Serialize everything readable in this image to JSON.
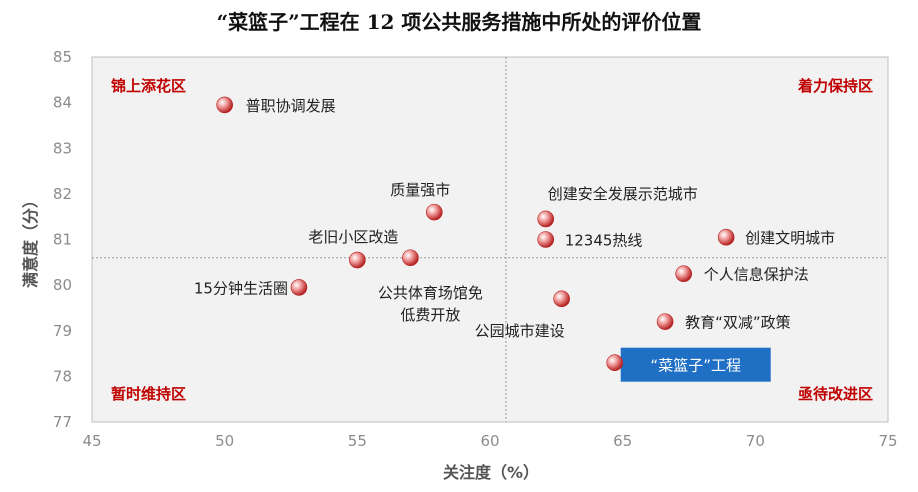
{
  "chart_data": {
    "type": "scatter",
    "title": "“菜篮子”工程在 12 项公共服务措施中所处的评价位置",
    "xlabel": "关注度（%）",
    "ylabel": "满意度（分）",
    "xlim": [
      45,
      75
    ],
    "ylim": [
      77,
      85
    ],
    "xticks": [
      "45",
      "50",
      "55",
      "60",
      "65",
      "70",
      "75"
    ],
    "yticks": [
      "77",
      "78",
      "79",
      "80",
      "81",
      "82",
      "83",
      "84",
      "85"
    ],
    "divider": {
      "x": 60.6,
      "y": 80.6
    },
    "grid": false,
    "quadrants": {
      "top_left": "锦上添花区",
      "top_right": "着力保持区",
      "bottom_left": "暂时维持区",
      "bottom_right": "亟待改进区"
    },
    "points": [
      {
        "label": "普职协调发展",
        "x": 50.0,
        "y": 83.95
      },
      {
        "label": "质量强市",
        "x": 57.9,
        "y": 81.6
      },
      {
        "label": "老旧小区改造",
        "x": 55.0,
        "y": 80.55
      },
      {
        "label": "15分钟生活圈",
        "x": 52.8,
        "y": 79.95
      },
      {
        "label": "公共体育场馆免低费开放",
        "label_lines": [
          "公共体育场馆免",
          "低费开放"
        ],
        "x": 57.0,
        "y": 80.6
      },
      {
        "label": "创建安全发展示范城市",
        "x": 62.1,
        "y": 81.45
      },
      {
        "label": "12345热线",
        "x": 62.1,
        "y": 81.0
      },
      {
        "label": "创建文明城市",
        "x": 68.9,
        "y": 81.05
      },
      {
        "label": "个人信息保护法",
        "x": 67.3,
        "y": 80.25
      },
      {
        "label": "公园城市建设",
        "x": 62.7,
        "y": 79.7
      },
      {
        "label": "教育“双减”政策",
        "x": 66.6,
        "y": 79.2
      },
      {
        "label": "“菜篮子”工程",
        "x": 64.7,
        "y": 78.3,
        "highlight": true
      }
    ]
  }
}
